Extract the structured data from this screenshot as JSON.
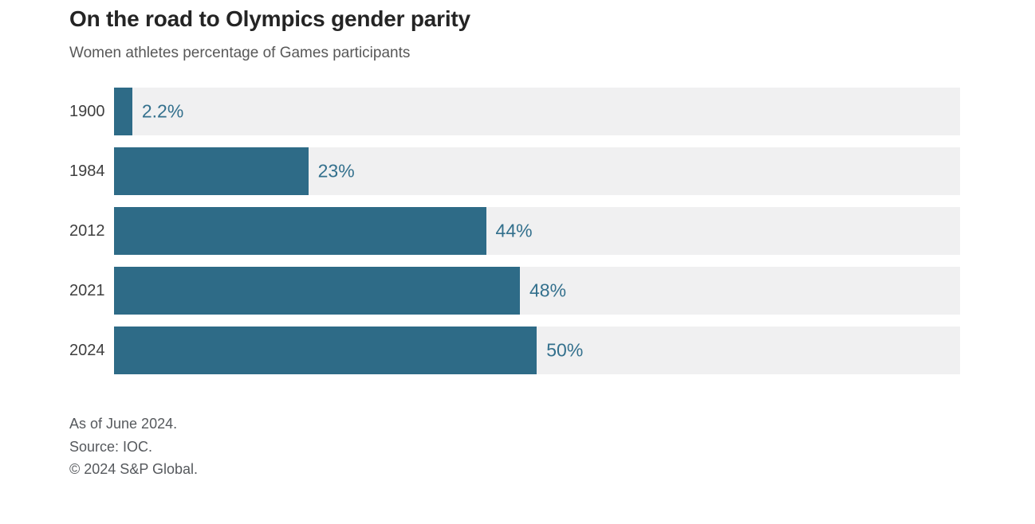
{
  "chart_data": {
    "type": "bar",
    "orientation": "horizontal",
    "title": "On the road to Olympics gender parity",
    "subtitle": "Women athletes percentage of Games participants",
    "categories": [
      "1900",
      "1984",
      "2012",
      "2021",
      "2024"
    ],
    "values": [
      2.2,
      23,
      44,
      48,
      50
    ],
    "value_labels": [
      "2.2%",
      "23%",
      "44%",
      "48%",
      "50%"
    ],
    "xlim": [
      0,
      100
    ],
    "grid": false,
    "legend": false,
    "bar_color": "#2e6b87",
    "track_color": "#f0f0f1",
    "value_label_color": "#33708d",
    "category_label_color": "#3f3f3f"
  },
  "footer": {
    "lines": [
      "As of June 2024.",
      "Source: IOC.",
      "© 2024 S&P Global."
    ]
  }
}
